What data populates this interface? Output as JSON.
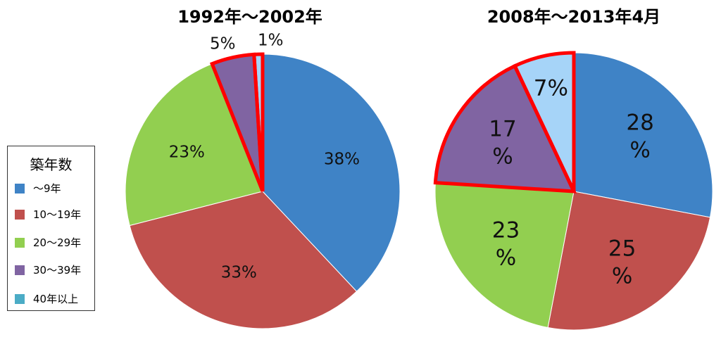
{
  "chart_data": [
    {
      "type": "pie",
      "title": "1992年～2002年",
      "categories": [
        "～9年",
        "10～19年",
        "20～29年",
        "30～39年",
        "40年以上"
      ],
      "values": [
        38,
        33,
        23,
        5,
        1
      ],
      "value_labels": [
        "38%",
        "33%",
        "23%",
        "5%",
        "1%"
      ],
      "colors": [
        "#3F83C6",
        "#C0504D",
        "#92CF50",
        "#8064A2",
        "#A6D4F8"
      ],
      "highlight": [
        3,
        4
      ],
      "highlight_color": "#FF0000"
    },
    {
      "type": "pie",
      "title": "2008年～2013年4月",
      "categories": [
        "～9年",
        "10～19年",
        "20～29年",
        "30～39年",
        "40年以上"
      ],
      "values": [
        28,
        25,
        23,
        17,
        7
      ],
      "value_labels": [
        "28\n%",
        "25\n%",
        "23\n%",
        "17\n%",
        "7%"
      ],
      "colors": [
        "#3F83C6",
        "#C0504D",
        "#92CF50",
        "#8064A2",
        "#A6D4F8"
      ],
      "highlight": [
        3,
        4
      ],
      "highlight_color": "#FF0000"
    }
  ],
  "legend": {
    "title": "築年数",
    "items": [
      {
        "label": "～9年",
        "color": "#3F83C6"
      },
      {
        "label": "10～19年",
        "color": "#C0504D"
      },
      {
        "label": "20～29年",
        "color": "#92CF50"
      },
      {
        "label": "30～39年",
        "color": "#8064A2"
      },
      {
        "label": "40年以上",
        "color": "#4BACC6"
      }
    ]
  }
}
